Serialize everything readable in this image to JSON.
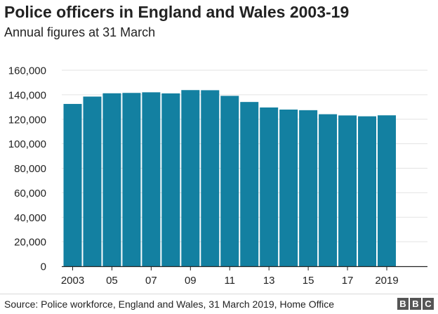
{
  "header": {
    "title": "Police officers in England and Wales 2003-19",
    "subtitle": "Annual figures at 31 March"
  },
  "footer": {
    "source": "Source: Police workforce, England and Wales, 31 March 2019, Home Office",
    "logo_letters": [
      "B",
      "B",
      "C"
    ]
  },
  "colors": {
    "bar": "#1380A1",
    "grid": "#e3e3e3",
    "axis": "#222222"
  },
  "chart_data": {
    "type": "bar",
    "title": "Police officers in England and Wales 2003-19",
    "subtitle": "Annual figures at 31 March",
    "categories": [
      "2003",
      "2004",
      "2005",
      "2006",
      "2007",
      "2008",
      "2009",
      "2010",
      "2011",
      "2012",
      "2013",
      "2014",
      "2015",
      "2016",
      "2017",
      "2018",
      "2019"
    ],
    "x_tick_labels": [
      "2003",
      "",
      "05",
      "",
      "07",
      "",
      "09",
      "",
      "11",
      "",
      "13",
      "",
      "15",
      "",
      "17",
      "",
      "2019"
    ],
    "values": [
      132500,
      138500,
      141200,
      141500,
      142000,
      141100,
      143800,
      143700,
      139100,
      134100,
      129600,
      127900,
      127400,
      124100,
      123100,
      122400,
      123200
    ],
    "y_ticks": [
      0,
      20000,
      40000,
      60000,
      80000,
      100000,
      120000,
      140000,
      160000
    ],
    "y_tick_labels": [
      "0",
      "20,000",
      "40,000",
      "60,000",
      "80,000",
      "100,000",
      "120,000",
      "140,000",
      "160,000"
    ],
    "ylim": [
      0,
      160000
    ],
    "xlabel": "",
    "ylabel": "",
    "grid": true,
    "legend": "none"
  }
}
